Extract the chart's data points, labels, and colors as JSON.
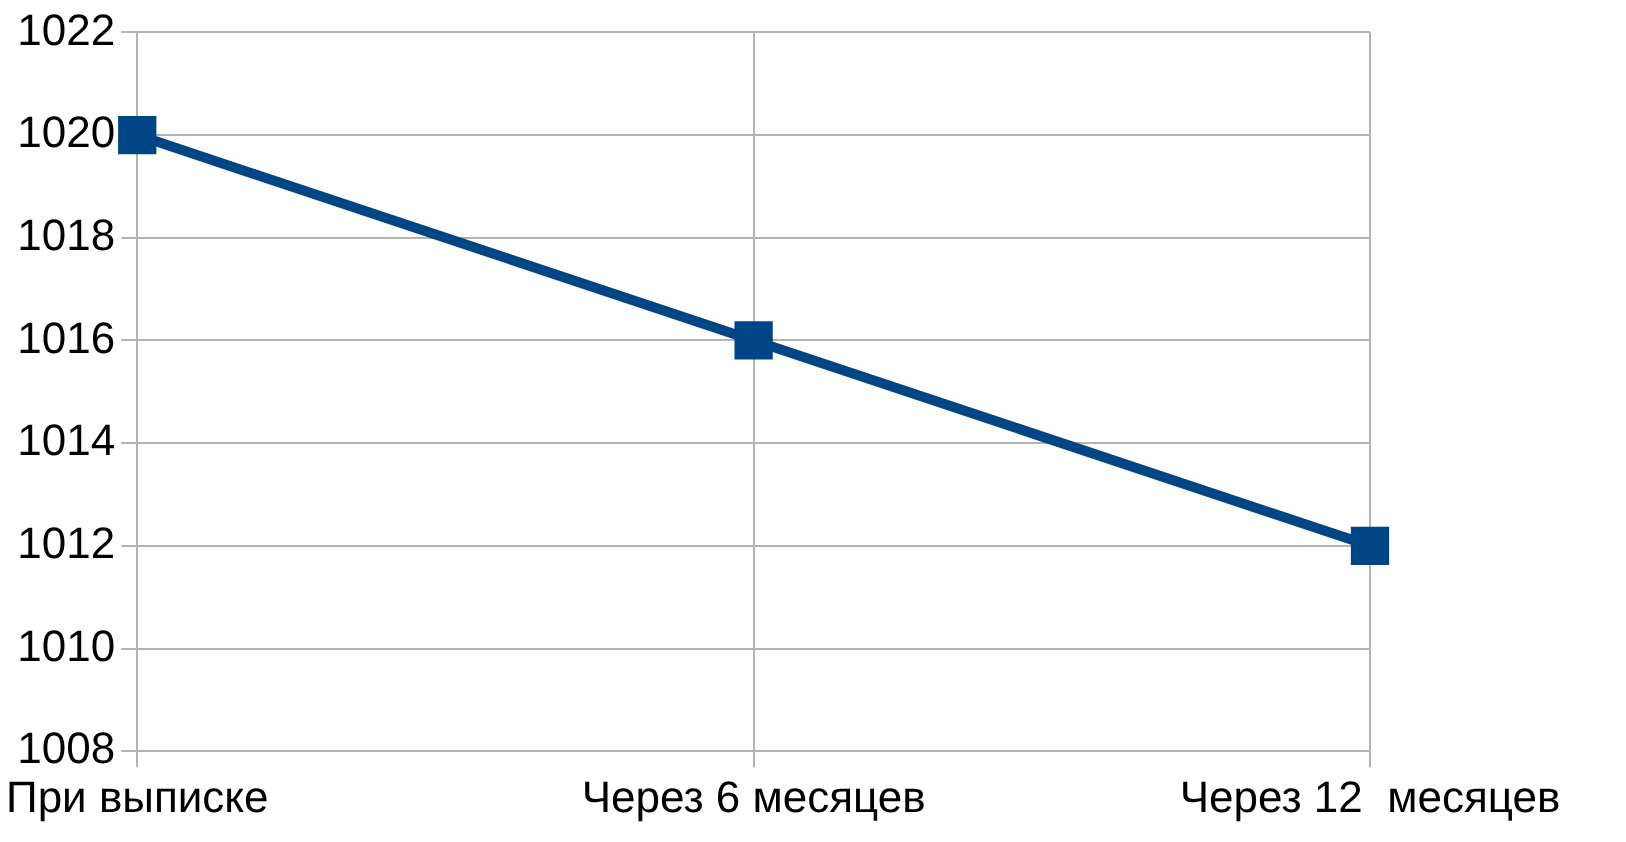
{
  "chart_data": {
    "type": "line",
    "categories": [
      "При выписке",
      "Через 6 месяцев",
      "Через 12  месяцев"
    ],
    "series": [
      {
        "color": "#004586",
        "values": [
          1020,
          1016,
          1012
        ]
      }
    ],
    "ylim": [
      1008,
      1022
    ],
    "yticks": [
      1008,
      1010,
      1012,
      1014,
      1016,
      1018,
      1020,
      1022
    ],
    "grid": true,
    "legend": false,
    "marker": "square",
    "line_style": "solid"
  }
}
